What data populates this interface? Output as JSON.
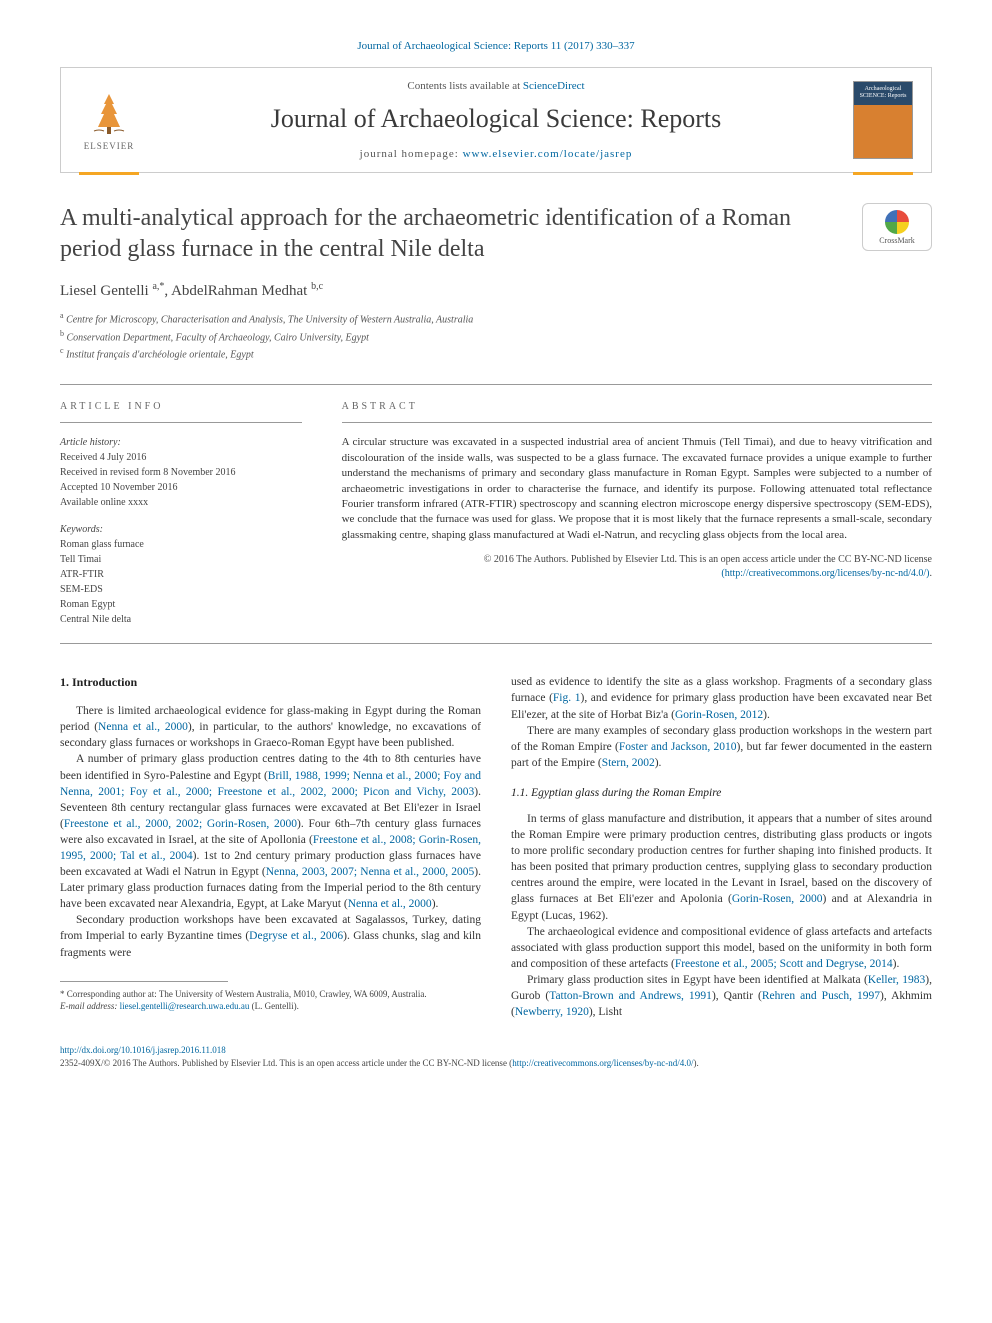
{
  "top_link": "Journal of Archaeological Science: Reports 11 (2017) 330–337",
  "header": {
    "contents_prefix": "Contents lists available at ",
    "contents_link": "ScienceDirect",
    "journal_name": "Journal of Archaeological Science: Reports",
    "homepage_prefix": "journal homepage: ",
    "homepage_link": "www.elsevier.com/locate/jasrep",
    "elsevier_label": "ELSEVIER",
    "cover_label": "Archaeological SCIENCE: Reports"
  },
  "crossmark_label": "CrossMark",
  "title": "A multi-analytical approach for the archaeometric identification of a Roman period glass furnace in the central Nile delta",
  "authors_html": "Liesel Gentelli <sup>a,*</sup>, AbdelRahman Medhat <sup>b,c</sup>",
  "affiliations": [
    {
      "sup": "a",
      "text": "Centre for Microscopy, Characterisation and Analysis, The University of Western Australia, Australia"
    },
    {
      "sup": "b",
      "text": "Conservation Department, Faculty of Archaeology, Cairo University, Egypt"
    },
    {
      "sup": "c",
      "text": "Institut français d'archéologie orientale, Egypt"
    }
  ],
  "info": {
    "section_label": "article info",
    "history_label": "Article history:",
    "history": [
      "Received 4 July 2016",
      "Received in revised form 8 November 2016",
      "Accepted 10 November 2016",
      "Available online xxxx"
    ],
    "keywords_label": "Keywords:",
    "keywords": [
      "Roman glass furnace",
      "Tell Timai",
      "ATR-FTIR",
      "SEM-EDS",
      "Roman Egypt",
      "Central Nile delta"
    ]
  },
  "abstract": {
    "section_label": "abstract",
    "text": "A circular structure was excavated in a suspected industrial area of ancient Thmuis (Tell Timai), and due to heavy vitrification and discolouration of the inside walls, was suspected to be a glass furnace. The excavated furnace provides a unique example to further understand the mechanisms of primary and secondary glass manufacture in Roman Egypt. Samples were subjected to a number of archaeometric investigations in order to characterise the furnace, and identify its purpose. Following attenuated total reflectance Fourier transform infrared (ATR-FTIR) spectroscopy and scanning electron microscope energy dispersive spectroscopy (SEM-EDS), we conclude that the furnace was used for glass. We propose that it is most likely that the furnace represents a small-scale, secondary glassmaking centre, shaping glass manufactured at Wadi el-Natrun, and recycling glass objects from the local area.",
    "copyright": "© 2016 The Authors. Published by Elsevier Ltd. This is an open access article under the CC BY-NC-ND license",
    "license_link": "(http://creativecommons.org/licenses/by-nc-nd/4.0/)"
  },
  "body": {
    "h1": "1. Introduction",
    "left_paras": [
      "There is limited archaeological evidence for glass-making in Egypt during the Roman period (<span class=\"cite\">Nenna et al., 2000</span>), in particular, to the authors' knowledge, no excavations of secondary glass furnaces or workshops in Graeco-Roman Egypt have been published.",
      "A number of primary glass production centres dating to the 4th to 8th centuries have been identified in Syro-Palestine and Egypt (<span class=\"cite\">Brill, 1988, 1999; Nenna et al., 2000; Foy and Nenna, 2001; Foy et al., 2000; Freestone et al., 2002, 2000; Picon and Vichy, 2003</span>). Seventeen 8th century rectangular glass furnaces were excavated at Bet Eli'ezer in Israel (<span class=\"cite\">Freestone et al., 2000, 2002; Gorin-Rosen, 2000</span>). Four 6th–7th century glass furnaces were also excavated in Israel, at the site of Apollonia (<span class=\"cite\">Freestone et al., 2008; Gorin-Rosen, 1995, 2000; Tal et al., 2004</span>). 1st to 2nd century primary production glass furnaces have been excavated at Wadi el Natrun in Egypt (<span class=\"cite\">Nenna, 2003, 2007; Nenna et al., 2000, 2005</span>). Later primary glass production furnaces dating from the Imperial period to the 8th century have been excavated near Alexandria, Egypt, at Lake Maryut (<span class=\"cite\">Nenna et al., 2000</span>).",
      "Secondary production workshops have been excavated at Sagalassos, Turkey, dating from Imperial to early Byzantine times (<span class=\"cite\">Degryse et al., 2006</span>). Glass chunks, slag and kiln fragments were"
    ],
    "right_top_paras": [
      "used as evidence to identify the site as a glass workshop. Fragments of a secondary glass furnace (<span class=\"cite\">Fig. 1</span>), and evidence for primary glass production have been excavated near Bet Eli'ezer, at the site of Horbat Biz'a (<span class=\"cite\">Gorin-Rosen, 2012</span>).",
      "There are many examples of secondary glass production workshops in the western part of the Roman Empire (<span class=\"cite\">Foster and Jackson, 2010</span>), but far fewer documented in the eastern part of the Empire (<span class=\"cite\">Stern, 2002</span>)."
    ],
    "sub1": "1.1. Egyptian glass during the Roman Empire",
    "right_paras": [
      "In terms of glass manufacture and distribution, it appears that a number of sites around the Roman Empire were primary production centres, distributing glass products or ingots to more prolific secondary production centres for further shaping into finished products. It has been posited that primary production centres, supplying glass to secondary production centres around the empire, were located in the Levant in Israel, based on the discovery of glass furnaces at Bet Eli'ezer and Apolonia (<span class=\"cite\">Gorin-Rosen, 2000</span>) and at Alexandria in Egypt (Lucas, 1962).",
      "The archaeological evidence and compositional evidence of glass artefacts and artefacts associated with glass production support this model, based on the uniformity in both form and composition of these artefacts (<span class=\"cite\">Freestone et al., 2005; Scott and Degryse, 2014</span>).",
      "Primary glass production sites in Egypt have been identified at Malkata (<span class=\"cite\">Keller, 1983</span>), Gurob (<span class=\"cite\">Tatton-Brown and Andrews, 1991</span>), Qantir (<span class=\"cite\">Rehren and Pusch, 1997</span>), Akhmim (<span class=\"cite\">Newberry, 1920</span>), Lisht"
    ]
  },
  "corresponding": {
    "star": "*",
    "text": "Corresponding author at: The University of Western Australia, M010, Crawley, WA 6009, Australia.",
    "email_label": "E-mail address:",
    "email": "liesel.gentelli@research.uwa.edu.au",
    "email_suffix": "(L. Gentelli)."
  },
  "footer": {
    "doi": "http://dx.doi.org/10.1016/j.jasrep.2016.11.018",
    "issn_line": "2352-409X/© 2016 The Authors. Published by Elsevier Ltd. This is an open access article under the CC BY-NC-ND license (",
    "issn_link": "http://creativecommons.org/licenses/by-nc-nd/4.0/",
    "issn_suffix": ")."
  },
  "colors": {
    "link": "#0066a0",
    "text": "#333333",
    "accent": "#f5a623",
    "rule": "#999999"
  }
}
